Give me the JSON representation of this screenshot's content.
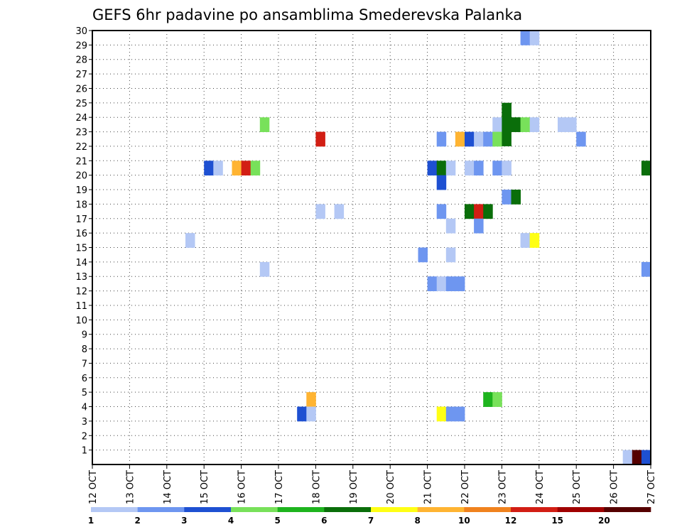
{
  "chart_data": {
    "type": "heatmap",
    "title": "GEFS 6hr padavine po ansamblima Smederevska Palanka",
    "xlabel": "",
    "ylabel": "",
    "x_ticks": [
      "12 OCT",
      "13 OCT",
      "14 OCT",
      "15 OCT",
      "16 OCT",
      "17 OCT",
      "18 OCT",
      "19 OCT",
      "20 OCT",
      "21 OCT",
      "22 OCT",
      "23 OCT",
      "24 OCT",
      "25 OCT",
      "26 OCT",
      "27 OCT"
    ],
    "x_range": [
      0,
      60
    ],
    "y_ticks": [
      1,
      2,
      3,
      4,
      5,
      6,
      7,
      8,
      9,
      10,
      11,
      12,
      13,
      14,
      15,
      16,
      17,
      18,
      19,
      20,
      21,
      22,
      23,
      24,
      25,
      26,
      27,
      28,
      29,
      30
    ],
    "y_range": [
      0,
      30
    ],
    "grid": true,
    "legend": {
      "placement": "bottom",
      "labels": [
        "1",
        "2",
        "3",
        "4",
        "5",
        "6",
        "7",
        "8",
        "10",
        "12",
        "15",
        "20"
      ],
      "colors": [
        "#b4c8f5",
        "#6e96f0",
        "#1e50d2",
        "#78e15a",
        "#1eb41e",
        "#0a6e0a",
        "#ffff14",
        "#ffb432",
        "#f0821e",
        "#d21e14",
        "#a00000",
        "#550000"
      ]
    },
    "cells": [
      {
        "x": 46,
        "y": 30,
        "c": 1
      },
      {
        "x": 47,
        "y": 30,
        "c": 0
      },
      {
        "x": 44,
        "y": 25,
        "c": 5
      },
      {
        "x": 18,
        "y": 24,
        "c": 3
      },
      {
        "x": 43,
        "y": 24,
        "c": 0
      },
      {
        "x": 44,
        "y": 24,
        "c": 1
      },
      {
        "x": 45,
        "y": 24,
        "c": 5
      },
      {
        "x": 46,
        "y": 24,
        "c": 3
      },
      {
        "x": 47,
        "y": 24,
        "c": 0
      },
      {
        "x": 50,
        "y": 24,
        "c": 0
      },
      {
        "x": 51,
        "y": 24,
        "c": 0
      },
      {
        "x": 24,
        "y": 23,
        "c": 9
      },
      {
        "x": 37,
        "y": 23,
        "c": 1
      },
      {
        "x": 39,
        "y": 23,
        "c": 7
      },
      {
        "x": 40,
        "y": 23,
        "c": 2
      },
      {
        "x": 41,
        "y": 23,
        "c": 0
      },
      {
        "x": 42,
        "y": 23,
        "c": 1
      },
      {
        "x": 43,
        "y": 23,
        "c": 3
      },
      {
        "x": 52,
        "y": 23,
        "c": 1
      },
      {
        "x": 12,
        "y": 21,
        "c": 2
      },
      {
        "x": 13,
        "y": 21,
        "c": 0
      },
      {
        "x": 15,
        "y": 21,
        "c": 7
      },
      {
        "x": 16,
        "y": 21,
        "c": 9
      },
      {
        "x": 17,
        "y": 21,
        "c": 3
      },
      {
        "x": 36,
        "y": 21,
        "c": 2
      },
      {
        "x": 37,
        "y": 21,
        "c": 5
      },
      {
        "x": 38,
        "y": 21,
        "c": 0
      },
      {
        "x": 40,
        "y": 21,
        "c": 0
      },
      {
        "x": 41,
        "y": 21,
        "c": 1
      },
      {
        "x": 43,
        "y": 21,
        "c": 1
      },
      {
        "x": 44,
        "y": 21,
        "c": 0
      },
      {
        "x": 59,
        "y": 21,
        "c": 5
      },
      {
        "x": 37,
        "y": 20,
        "c": 2
      },
      {
        "x": 44,
        "y": 19,
        "c": 1
      },
      {
        "x": 45,
        "y": 19,
        "c": 5
      },
      {
        "x": 24,
        "y": 18,
        "c": 0
      },
      {
        "x": 26,
        "y": 18,
        "c": 0
      },
      {
        "x": 37,
        "y": 18,
        "c": 1
      },
      {
        "x": 40,
        "y": 18,
        "c": 5
      },
      {
        "x": 41,
        "y": 18,
        "c": 9
      },
      {
        "x": 42,
        "y": 18,
        "c": 5
      },
      {
        "x": 38,
        "y": 17,
        "c": 0
      },
      {
        "x": 41,
        "y": 17,
        "c": 1
      },
      {
        "x": 10,
        "y": 16,
        "c": 0
      },
      {
        "x": 46,
        "y": 16,
        "c": 0
      },
      {
        "x": 47,
        "y": 16,
        "c": 6
      },
      {
        "x": 35,
        "y": 15,
        "c": 1
      },
      {
        "x": 38,
        "y": 15,
        "c": 0
      },
      {
        "x": 18,
        "y": 14,
        "c": 0
      },
      {
        "x": 59,
        "y": 14,
        "c": 1
      },
      {
        "x": 36,
        "y": 13,
        "c": 1
      },
      {
        "x": 37,
        "y": 13,
        "c": 0
      },
      {
        "x": 38,
        "y": 13,
        "c": 1
      },
      {
        "x": 39,
        "y": 13,
        "c": 1
      },
      {
        "x": 23,
        "y": 5,
        "c": 7
      },
      {
        "x": 42,
        "y": 5,
        "c": 4
      },
      {
        "x": 43,
        "y": 5,
        "c": 3
      },
      {
        "x": 22,
        "y": 4,
        "c": 2
      },
      {
        "x": 23,
        "y": 4,
        "c": 0
      },
      {
        "x": 37,
        "y": 4,
        "c": 6
      },
      {
        "x": 38,
        "y": 4,
        "c": 1
      },
      {
        "x": 39,
        "y": 4,
        "c": 1
      },
      {
        "x": 57,
        "y": 1,
        "c": 0
      },
      {
        "x": 58,
        "y": 1,
        "c": 11
      },
      {
        "x": 59,
        "y": 1,
        "c": 2
      }
    ],
    "tall_cells": [
      {
        "x": 44,
        "y0": 23,
        "y1": 25,
        "c": 5
      }
    ]
  }
}
